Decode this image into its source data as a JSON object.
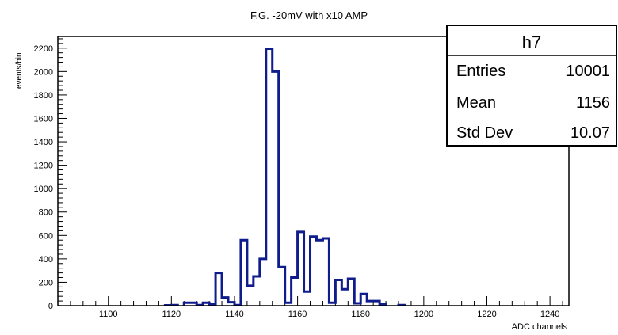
{
  "chart_data": {
    "type": "bar",
    "title": "F.G. -20mV with x10 AMP",
    "xlabel": "ADC channels",
    "ylabel": "events/bin",
    "xlim": [
      1084,
      1246
    ],
    "ylim": [
      0,
      2300
    ],
    "x_ticks": [
      1100,
      1120,
      1140,
      1160,
      1180,
      1200,
      1220,
      1240
    ],
    "y_ticks": [
      0,
      200,
      400,
      600,
      800,
      1000,
      1200,
      1400,
      1600,
      1800,
      2000,
      2200
    ],
    "x_tick_labels": [
      "1100",
      "1120",
      "1140",
      "1160",
      "1180",
      "1200",
      "1220",
      "1240"
    ],
    "y_tick_labels": [
      "0",
      "200",
      "400",
      "600",
      "800",
      "1000",
      "1200",
      "1400",
      "1600",
      "1800",
      "2000",
      "2200"
    ],
    "bin_width": 2,
    "bins": [
      {
        "x": 1118,
        "value": 3
      },
      {
        "x": 1120,
        "value": 5
      },
      {
        "x": 1124,
        "value": 25
      },
      {
        "x": 1126,
        "value": 25
      },
      {
        "x": 1128,
        "value": 5
      },
      {
        "x": 1130,
        "value": 25
      },
      {
        "x": 1132,
        "value": 12
      },
      {
        "x": 1134,
        "value": 280
      },
      {
        "x": 1136,
        "value": 70
      },
      {
        "x": 1138,
        "value": 30
      },
      {
        "x": 1140,
        "value": 5
      },
      {
        "x": 1142,
        "value": 560
      },
      {
        "x": 1144,
        "value": 170
      },
      {
        "x": 1146,
        "value": 250
      },
      {
        "x": 1148,
        "value": 400
      },
      {
        "x": 1150,
        "value": 2195
      },
      {
        "x": 1152,
        "value": 2000
      },
      {
        "x": 1154,
        "value": 330
      },
      {
        "x": 1156,
        "value": 25
      },
      {
        "x": 1158,
        "value": 240
      },
      {
        "x": 1160,
        "value": 630
      },
      {
        "x": 1162,
        "value": 120
      },
      {
        "x": 1164,
        "value": 590
      },
      {
        "x": 1166,
        "value": 560
      },
      {
        "x": 1168,
        "value": 575
      },
      {
        "x": 1170,
        "value": 25
      },
      {
        "x": 1172,
        "value": 220
      },
      {
        "x": 1174,
        "value": 140
      },
      {
        "x": 1176,
        "value": 230
      },
      {
        "x": 1178,
        "value": 20
      },
      {
        "x": 1180,
        "value": 100
      },
      {
        "x": 1182,
        "value": 40
      },
      {
        "x": 1184,
        "value": 40
      },
      {
        "x": 1186,
        "value": 10
      },
      {
        "x": 1192,
        "value": 5
      }
    ],
    "line_color": "#0f1c8c",
    "grid": false,
    "legend": "none"
  },
  "stats_box": {
    "name": "h7",
    "rows": [
      {
        "label": "Entries",
        "value": "10001"
      },
      {
        "label": "Mean",
        "value": "1156"
      },
      {
        "label": "Std Dev",
        "value": "10.07"
      }
    ]
  }
}
